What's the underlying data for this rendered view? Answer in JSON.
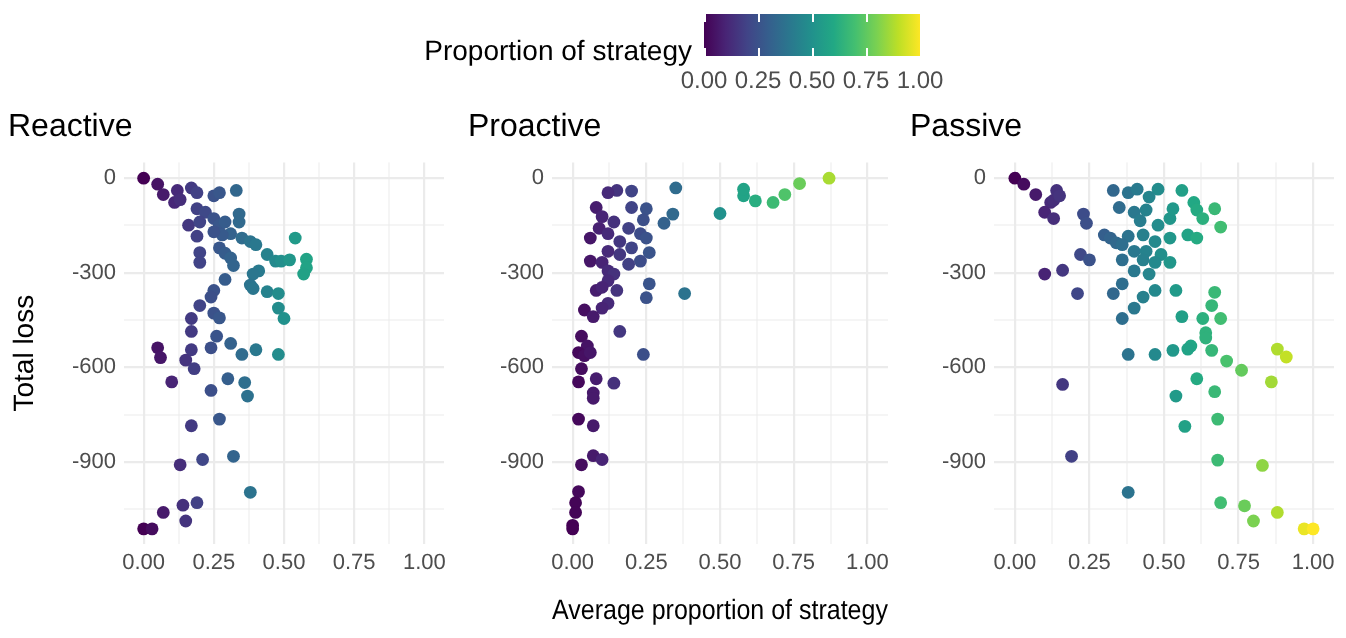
{
  "chart_data": [
    {
      "type": "scatter",
      "title": "Reactive",
      "ylabel": "Total loss",
      "clabel": "Proportion of strategy",
      "clim": [
        0,
        1
      ],
      "cticks": [
        {
          "value": 0,
          "label": "0.00"
        },
        {
          "value": 0.25,
          "label": "0.25"
        },
        {
          "value": 0.5,
          "label": "0.50"
        },
        {
          "value": 0.75,
          "label": "0.75"
        },
        {
          "value": 1,
          "label": "1.00"
        }
      ],
      "x": [
        0,
        0.05,
        0.07,
        0.11,
        0.12,
        0.13,
        0.17,
        0.19,
        0.25,
        0.27,
        0.33,
        0.19,
        0.22,
        0.16,
        0.2,
        0.25,
        0.27,
        0.29,
        0.34,
        0.34,
        0.31,
        0.28,
        0.25,
        0.19,
        0.35,
        0.38,
        0.4,
        0.27,
        0.29,
        0.31,
        0.32,
        0.2,
        0.2,
        0.44,
        0.47,
        0.49,
        0.52,
        0.54,
        0.58,
        0.58,
        0.57,
        0.41,
        0.39,
        0.38,
        0.39,
        0.44,
        0.48,
        0.48,
        0.5,
        0.29,
        0.25,
        0.24,
        0.2,
        0.25,
        0.27,
        0.17,
        0.17,
        0.26,
        0.24,
        0.31,
        0.35,
        0.4,
        0.48,
        0.17,
        0.05,
        0.06,
        0.15,
        0.18,
        0.1,
        0.3,
        0.36,
        0.37,
        0.24,
        0.27,
        0.17,
        0.21,
        0.13,
        0.32,
        0.38,
        0.19,
        0.14,
        0.07,
        0.15,
        0,
        0.03
      ],
      "values": [
        0,
        -19,
        -52,
        -77,
        -39,
        -68,
        -31,
        -46,
        -56,
        -46,
        -39,
        -97,
        -108,
        -149,
        -139,
        -128,
        -149,
        -139,
        -114,
        -139,
        -176,
        -180,
        -170,
        -184,
        -190,
        -201,
        -211,
        -221,
        -238,
        -253,
        -277,
        -236,
        -267,
        -242,
        -263,
        -263,
        -259,
        -190,
        -257,
        -284,
        -304,
        -294,
        -304,
        -339,
        -350,
        -360,
        -366,
        -412,
        -445,
        -321,
        -356,
        -377,
        -404,
        -428,
        -443,
        -445,
        -486,
        -501,
        -538,
        -524,
        -559,
        -544,
        -559,
        -544,
        -538,
        -569,
        -577,
        -604,
        -646,
        -636,
        -648,
        -691,
        -673,
        -764,
        -785,
        -892,
        -909,
        -882,
        -996,
        -1029,
        -1037,
        -1060,
        -1087,
        -1112,
        -1112
      ],
      "cvalues": [
        0,
        0.05,
        0.07,
        0.11,
        0.12,
        0.13,
        0.17,
        0.19,
        0.25,
        0.27,
        0.33,
        0.19,
        0.22,
        0.16,
        0.2,
        0.25,
        0.27,
        0.29,
        0.34,
        0.34,
        0.31,
        0.28,
        0.25,
        0.19,
        0.35,
        0.38,
        0.4,
        0.27,
        0.29,
        0.31,
        0.32,
        0.2,
        0.2,
        0.44,
        0.47,
        0.49,
        0.52,
        0.54,
        0.58,
        0.58,
        0.57,
        0.41,
        0.39,
        0.38,
        0.39,
        0.44,
        0.48,
        0.48,
        0.5,
        0.29,
        0.25,
        0.24,
        0.2,
        0.25,
        0.27,
        0.17,
        0.17,
        0.26,
        0.24,
        0.31,
        0.35,
        0.4,
        0.48,
        0.17,
        0.05,
        0.06,
        0.15,
        0.18,
        0.1,
        0.3,
        0.36,
        0.37,
        0.24,
        0.27,
        0.17,
        0.21,
        0.13,
        0.32,
        0.38,
        0.19,
        0.14,
        0.07,
        0.15,
        0,
        0.03
      ],
      "xlim": [
        -0.07,
        1.07
      ],
      "ylim": [
        -1160,
        50
      ],
      "xticks": [
        {
          "value": 0,
          "label": "0.00"
        },
        {
          "value": 0.125,
          "label": null
        },
        {
          "value": 0.25,
          "label": "0.25"
        },
        {
          "value": 0.375,
          "label": null
        },
        {
          "value": 0.5,
          "label": "0.50"
        },
        {
          "value": 0.625,
          "label": null
        },
        {
          "value": 0.75,
          "label": "0.75"
        },
        {
          "value": 0.875,
          "label": null
        },
        {
          "value": 1,
          "label": "1.00"
        }
      ],
      "yticks": [
        {
          "value": -1050,
          "label": null
        },
        -900,
        {
          "value": -750,
          "label": null
        },
        -600,
        {
          "value": -450,
          "label": null
        },
        -300,
        {
          "value": -150,
          "label": null
        },
        0
      ],
      "grid": true,
      "marker": "circle"
    },
    {
      "type": "scatter",
      "title": "Proactive",
      "xlabel": "Average proportion of strategy",
      "x": [
        0.87,
        0.77,
        0.72,
        0.68,
        0.62,
        0.58,
        0.58,
        0.5,
        0.35,
        0.34,
        0.31,
        0.25,
        0.24,
        0.2,
        0.15,
        0.12,
        0.2,
        0.08,
        0.1,
        0.14,
        0.06,
        0.09,
        0.12,
        0.19,
        0.16,
        0.2,
        0.23,
        0.25,
        0.26,
        0.23,
        0.19,
        0.16,
        0.12,
        0.06,
        0.1,
        0.12,
        0.14,
        0.12,
        0.15,
        0.08,
        0.1,
        0.26,
        0.25,
        0.38,
        0.12,
        0.1,
        0.04,
        0.07,
        0.16,
        0.03,
        0.05,
        0.02,
        0.04,
        0.06,
        0.24,
        0.03,
        0.02,
        0.08,
        0.14,
        0.07,
        0.07,
        0.02,
        0.07,
        0.07,
        0.1,
        0.03,
        0.02,
        0.01,
        0.01,
        0,
        0
      ],
      "values": [
        0,
        -17,
        -52,
        -77,
        -72,
        -56,
        -35,
        -112,
        -31,
        -114,
        -143,
        -97,
        -132,
        -41,
        -39,
        -46,
        -93,
        -93,
        -122,
        -139,
        -190,
        -159,
        -176,
        -159,
        -201,
        -221,
        -176,
        -190,
        -236,
        -263,
        -273,
        -242,
        -232,
        -263,
        -267,
        -294,
        -304,
        -325,
        -356,
        -356,
        -346,
        -335,
        -379,
        -366,
        -397,
        -412,
        -418,
        -439,
        -486,
        -501,
        -532,
        -553,
        -563,
        -553,
        -559,
        -604,
        -646,
        -636,
        -650,
        -681,
        -698,
        -764,
        -785,
        -880,
        -892,
        -909,
        -994,
        -1029,
        -1060,
        -1101,
        -1112
      ],
      "xlim": [
        -0.07,
        1.07
      ],
      "ylim": [
        -1160,
        50
      ],
      "xticks": [
        {
          "value": 0,
          "label": "0.00"
        },
        {
          "value": 0.125,
          "label": null
        },
        {
          "value": 0.25,
          "label": "0.25"
        },
        {
          "value": 0.375,
          "label": null
        },
        {
          "value": 0.5,
          "label": "0.50"
        },
        {
          "value": 0.625,
          "label": null
        },
        {
          "value": 0.75,
          "label": "0.75"
        },
        {
          "value": 0.875,
          "label": null
        },
        {
          "value": 1,
          "label": "1.00"
        }
      ],
      "yticks": [
        {
          "value": -1050,
          "label": null
        },
        -900,
        {
          "value": -750,
          "label": null
        },
        -600,
        {
          "value": -450,
          "label": null
        },
        -300,
        {
          "value": -150,
          "label": null
        },
        0
      ],
      "grid": true,
      "marker": "circle"
    },
    {
      "type": "scatter",
      "title": "Passive",
      "x": [
        0,
        0.03,
        0.07,
        0.12,
        0.13,
        0.14,
        0.15,
        0.1,
        0.13,
        0.23,
        0.24,
        0.3,
        0.32,
        0.34,
        0.22,
        0.25,
        0.1,
        0.16,
        0.21,
        0.33,
        0.38,
        0.41,
        0.35,
        0.4,
        0.44,
        0.48,
        0.45,
        0.42,
        0.48,
        0.52,
        0.53,
        0.56,
        0.6,
        0.61,
        0.63,
        0.67,
        0.69,
        0.58,
        0.61,
        0.52,
        0.47,
        0.43,
        0.38,
        0.36,
        0.4,
        0.44,
        0.49,
        0.52,
        0.47,
        0.43,
        0.36,
        0.4,
        0.45,
        0.36,
        0.33,
        0.43,
        0.4,
        0.36,
        0.47,
        0.54,
        0.56,
        0.67,
        0.66,
        0.69,
        0.63,
        0.64,
        0.64,
        0.59,
        0.58,
        0.66,
        0.53,
        0.47,
        0.38,
        0.71,
        0.76,
        0.88,
        0.91,
        0.86,
        0.61,
        0.67,
        0.54,
        0.16,
        0.57,
        0.68,
        0.68,
        0.83,
        0.19,
        0.38,
        0.69,
        0.77,
        0.8,
        0.88,
        0.97,
        1
      ],
      "values": [
        0,
        -19,
        -52,
        -77,
        -70,
        -39,
        -56,
        -108,
        -128,
        -114,
        -143,
        -180,
        -190,
        -205,
        -242,
        -259,
        -304,
        -292,
        -366,
        -39,
        -46,
        -35,
        -93,
        -108,
        -101,
        -35,
        -60,
        -135,
        -149,
        -128,
        -97,
        -39,
        -77,
        -101,
        -128,
        -97,
        -155,
        -180,
        -190,
        -190,
        -201,
        -180,
        -184,
        -211,
        -232,
        -232,
        -242,
        -267,
        -267,
        -259,
        -259,
        -294,
        -304,
        -335,
        -366,
        -377,
        -412,
        -445,
        -356,
        -356,
        -439,
        -362,
        -404,
        -445,
        -445,
        -490,
        -507,
        -532,
        -542,
        -546,
        -546,
        -559,
        -559,
        -580,
        -609,
        -542,
        -567,
        -646,
        -636,
        -677,
        -691,
        -654,
        -787,
        -764,
        -894,
        -911,
        -882,
        -996,
        -1029,
        -1039,
        -1087,
        -1060,
        -1112,
        -1112
      ],
      "xlim": [
        -0.07,
        1.07
      ],
      "ylim": [
        -1160,
        50
      ],
      "xticks": [
        {
          "value": 0,
          "label": "0.00"
        },
        {
          "value": 0.125,
          "label": null
        },
        {
          "value": 0.25,
          "label": "0.25"
        },
        {
          "value": 0.375,
          "label": null
        },
        {
          "value": 0.5,
          "label": "0.50"
        },
        {
          "value": 0.625,
          "label": null
        },
        {
          "value": 0.75,
          "label": "0.75"
        },
        {
          "value": 0.875,
          "label": null
        },
        {
          "value": 1,
          "label": "1.00"
        }
      ],
      "yticks": [
        {
          "value": -1050,
          "label": null
        },
        -900,
        {
          "value": -750,
          "label": null
        },
        -600,
        {
          "value": -450,
          "label": null
        },
        -300,
        {
          "value": -150,
          "label": null
        },
        0
      ],
      "grid": true,
      "marker": "circle"
    }
  ]
}
